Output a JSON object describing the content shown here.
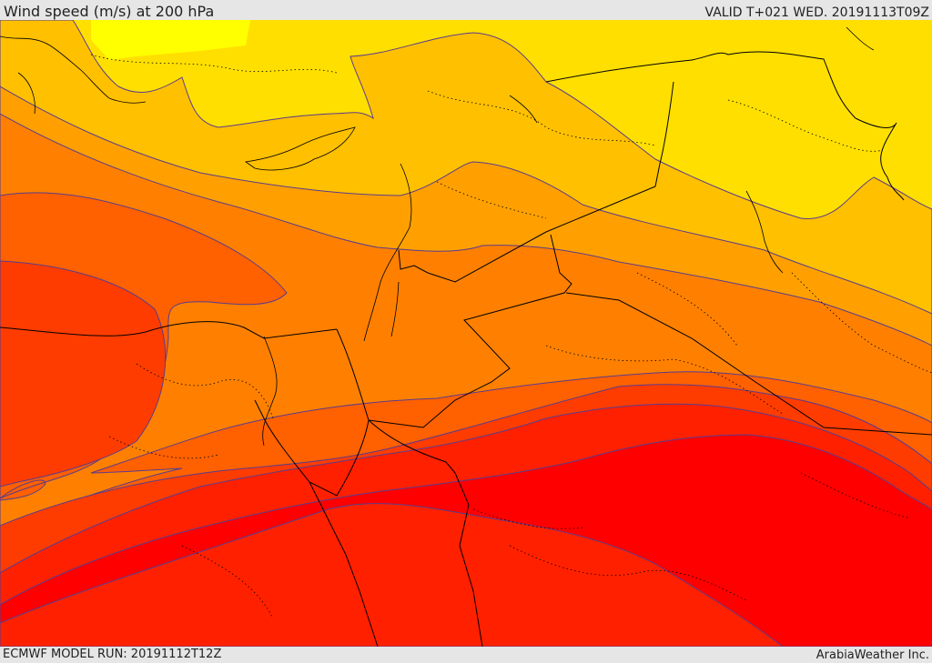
{
  "header": {
    "title": "Wind speed (m/s) at 200 hPa",
    "valid": "VALID T+021 WED. 20191113T09Z"
  },
  "footer": {
    "model_run": "ECMWF MODEL RUN: 20191112T12Z",
    "brand": "ArabiaWeather Inc."
  },
  "palette": {
    "band_1": "#ffff00",
    "band_2": "#ffdf00",
    "band_3": "#ffc000",
    "band_4": "#ffa000",
    "band_5": "#ff8000",
    "band_6": "#ff6000",
    "band_7": "#ff3c00",
    "band_8": "#ff2000",
    "band_9": "#ff0000",
    "contour_line": "#5a3c8c",
    "boundary_line": "#000000"
  }
}
